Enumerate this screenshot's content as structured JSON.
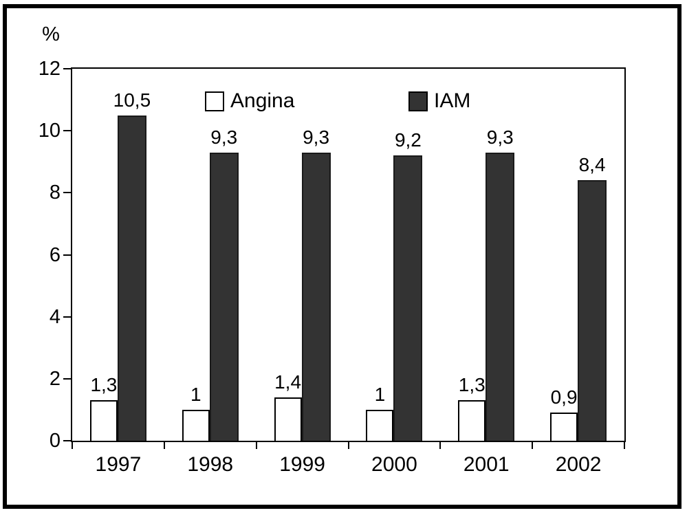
{
  "chart_data": {
    "type": "bar",
    "title": "",
    "ylabel": "%",
    "xlabel": "",
    "categories": [
      "1997",
      "1998",
      "1999",
      "2000",
      "2001",
      "2002"
    ],
    "series": [
      {
        "name": "Angina",
        "swatch_color": "#ffffff",
        "values": [
          1.3,
          1,
          1.4,
          1,
          1.3,
          0.9
        ],
        "value_labels": [
          "1,3",
          "1",
          "1,4",
          "1",
          "1,3",
          "0,9"
        ]
      },
      {
        "name": "IAM",
        "swatch_color": "#333333",
        "values": [
          10.5,
          9.3,
          9.3,
          9.2,
          9.3,
          8.4
        ],
        "value_labels": [
          "10,5",
          "9,3",
          "9,3",
          "9,2",
          "9,3",
          "8,4"
        ]
      }
    ],
    "ylim": [
      0,
      12
    ],
    "yticks": [
      0,
      2,
      4,
      6,
      8,
      10,
      12
    ],
    "grid": false,
    "legend_position": "top-inside",
    "decimal_separator": ",",
    "colors": {
      "angina_bar": "#ffffff",
      "iam_bar": "#333333",
      "axis": "#000000",
      "frame": "#000000",
      "background": "#ffffff"
    }
  },
  "legend": {
    "items": [
      {
        "label": "Angina",
        "swatch": "white"
      },
      {
        "label": "IAM",
        "swatch": "dark"
      }
    ]
  }
}
